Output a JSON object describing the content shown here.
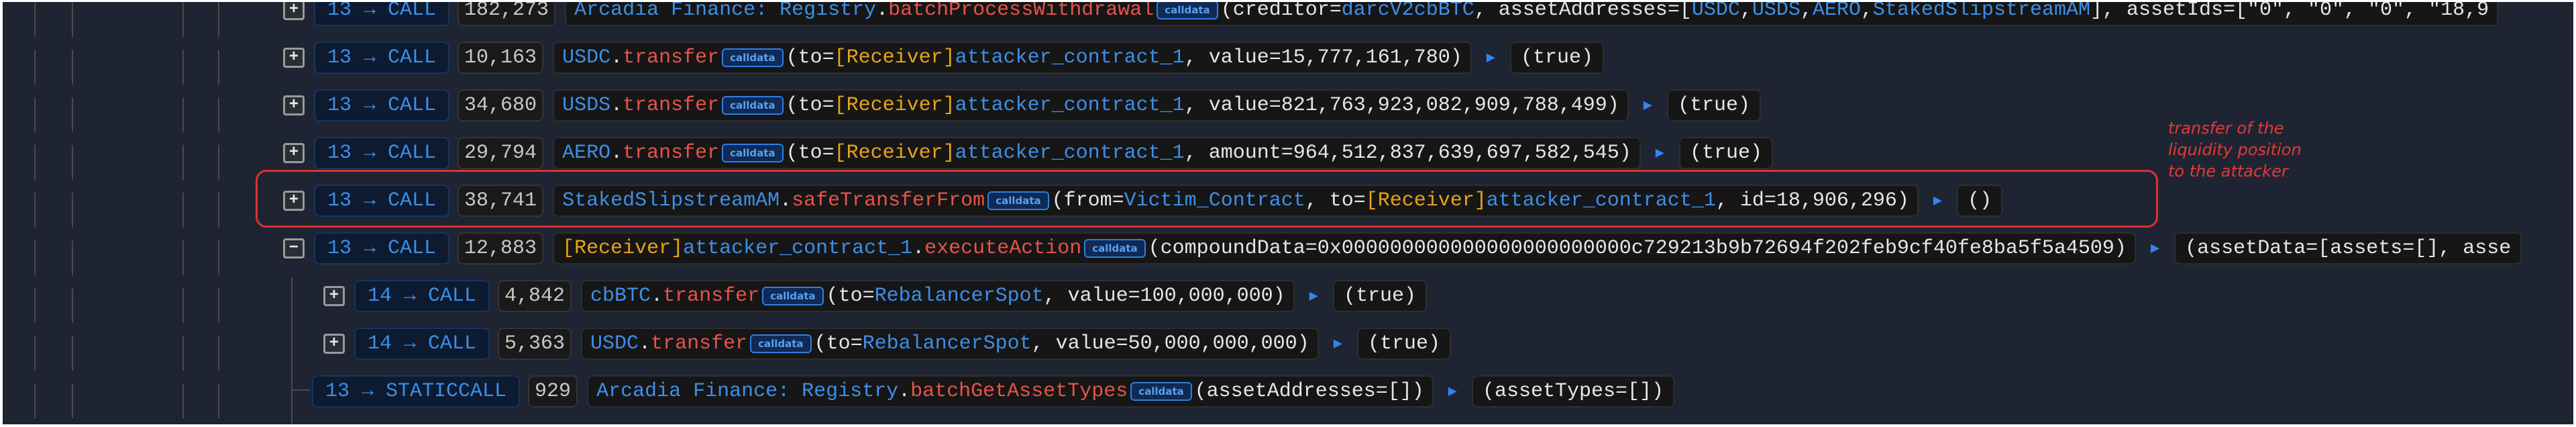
{
  "colors": {
    "background": "#1f2433",
    "call_badge_text": "#3b8fe8",
    "method": "#e5534b",
    "address": "#3d8fe8",
    "receiver_tag": "#e8a317",
    "annotation": "#e53935"
  },
  "icons": {
    "expand": "plus-square-icon",
    "collapse": "minus-square-icon",
    "output_arrow": "triangle-right-icon"
  },
  "rows": [
    {
      "depth": 0,
      "toggle": "+",
      "call": "13 → CALL",
      "gas": "182,273",
      "segs": [
        [
          "a",
          "Arcadia Finance: Registry"
        ],
        [
          "p",
          "."
        ],
        [
          "m",
          "batchProcessWithdrawal"
        ],
        [
          "b",
          "calldata"
        ],
        [
          "p",
          "(creditor="
        ],
        [
          "a",
          "darcV2cbBTC"
        ],
        [
          "p",
          ", assetAddresses=["
        ],
        [
          "a",
          "USDC"
        ],
        [
          "p",
          ", "
        ],
        [
          "a",
          "USDS"
        ],
        [
          "p",
          ", "
        ],
        [
          "a",
          "AERO"
        ],
        [
          "p",
          ", "
        ],
        [
          "a",
          "StakedSlipstreamAM"
        ],
        [
          "p",
          "], assetIds=[\"0\", \"0\", \"0\", \"18,9"
        ]
      ],
      "output": null
    },
    {
      "depth": 0,
      "toggle": "+",
      "call": "13 → CALL",
      "gas": "10,163",
      "segs": [
        [
          "a",
          "USDC"
        ],
        [
          "p",
          "."
        ],
        [
          "m",
          "transfer"
        ],
        [
          "b",
          "calldata"
        ],
        [
          "p",
          "(to="
        ],
        [
          "r",
          "[Receiver]"
        ],
        [
          "a",
          "attacker_contract_1"
        ],
        [
          "p",
          ", value=15,777,161,780)"
        ]
      ],
      "output": "(true)"
    },
    {
      "depth": 0,
      "toggle": "+",
      "call": "13 → CALL",
      "gas": "34,680",
      "segs": [
        [
          "a",
          "USDS"
        ],
        [
          "p",
          "."
        ],
        [
          "m",
          "transfer"
        ],
        [
          "b",
          "calldata"
        ],
        [
          "p",
          "(to="
        ],
        [
          "r",
          "[Receiver]"
        ],
        [
          "a",
          "attacker_contract_1"
        ],
        [
          "p",
          ", value=821,763,923,082,909,788,499)"
        ]
      ],
      "output": "(true)"
    },
    {
      "depth": 0,
      "toggle": "+",
      "call": "13 → CALL",
      "gas": "29,794",
      "segs": [
        [
          "a",
          "AERO"
        ],
        [
          "p",
          "."
        ],
        [
          "m",
          "transfer"
        ],
        [
          "b",
          "calldata"
        ],
        [
          "p",
          "(to="
        ],
        [
          "r",
          "[Receiver]"
        ],
        [
          "a",
          "attacker_contract_1"
        ],
        [
          "p",
          ", amount=964,512,837,639,697,582,545)"
        ]
      ],
      "output": "(true)"
    },
    {
      "depth": 0,
      "toggle": "+",
      "call": "13 → CALL",
      "gas": "38,741",
      "segs": [
        [
          "a",
          "StakedSlipstreamAM"
        ],
        [
          "p",
          "."
        ],
        [
          "m",
          "safeTransferFrom"
        ],
        [
          "b",
          "calldata"
        ],
        [
          "p",
          "(from="
        ],
        [
          "a",
          "Victim_Contract"
        ],
        [
          "p",
          ", to="
        ],
        [
          "r",
          "[Receiver]"
        ],
        [
          "a",
          "attacker_contract_1"
        ],
        [
          "p",
          ", id=18,906,296)"
        ]
      ],
      "output": "()"
    },
    {
      "depth": 0,
      "toggle": "−",
      "call": "13 → CALL",
      "gas": "12,883",
      "segs": [
        [
          "r",
          "[Receiver]"
        ],
        [
          "p",
          " "
        ],
        [
          "a",
          "attacker_contract_1"
        ],
        [
          "p",
          "."
        ],
        [
          "m",
          "executeAction"
        ],
        [
          "b",
          "calldata"
        ],
        [
          "p",
          "(compoundData=0x000000000000000000000000c729213b9b72694f202feb9cf40fe8ba5f5a4509)"
        ]
      ],
      "output": "(assetData=[assets=[], asse"
    },
    {
      "depth": 1,
      "toggle": "+",
      "call": "14 → CALL",
      "gas": "4,842",
      "segs": [
        [
          "a",
          "cbBTC"
        ],
        [
          "p",
          "."
        ],
        [
          "m",
          "transfer"
        ],
        [
          "b",
          "calldata"
        ],
        [
          "p",
          "(to="
        ],
        [
          "a",
          "RebalancerSpot"
        ],
        [
          "p",
          ", value=100,000,000)"
        ]
      ],
      "output": "(true)"
    },
    {
      "depth": 1,
      "toggle": "+",
      "call": "14 → CALL",
      "gas": "5,363",
      "segs": [
        [
          "a",
          "USDC"
        ],
        [
          "p",
          "."
        ],
        [
          "m",
          "transfer"
        ],
        [
          "b",
          "calldata"
        ],
        [
          "p",
          "(to="
        ],
        [
          "a",
          "RebalancerSpot"
        ],
        [
          "p",
          ", value=50,000,000,000)"
        ]
      ],
      "output": "(true)"
    },
    {
      "depth": 0,
      "toggle": null,
      "call": "13 → STATICCALL",
      "gas": "929",
      "segs": [
        [
          "a",
          "Arcadia Finance: Registry"
        ],
        [
          "p",
          "."
        ],
        [
          "m",
          "batchGetAssetTypes"
        ],
        [
          "b",
          "calldata"
        ],
        [
          "p",
          "(assetAddresses=[])"
        ]
      ],
      "output": "(assetTypes=[])"
    }
  ],
  "annotation": {
    "lines": [
      "transfer of the",
      "liquidity position",
      "to the attacker"
    ]
  }
}
